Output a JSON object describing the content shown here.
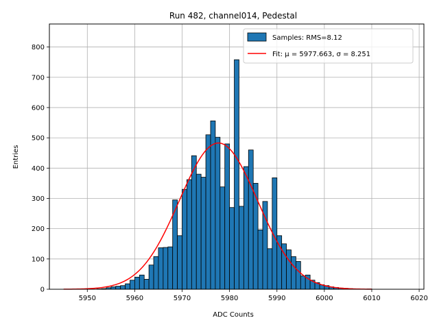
{
  "chart_data": {
    "type": "bar",
    "title": "Run 482, channel014, Pedestal",
    "xlabel": "ADC Counts",
    "ylabel": "Entries",
    "xlim": [
      5942,
      6021
    ],
    "ylim": [
      0,
      876
    ],
    "xticks": [
      5950,
      5960,
      5970,
      5980,
      5990,
      6000,
      6010,
      6020
    ],
    "yticks": [
      0,
      100,
      200,
      300,
      400,
      500,
      600,
      700,
      800
    ],
    "grid": true,
    "legend_position": "upper-right",
    "bin_width": 1,
    "bin_start": 5952,
    "values": [
      1,
      2,
      5,
      8,
      10,
      12,
      18,
      30,
      40,
      47,
      33,
      80,
      108,
      137,
      138,
      140,
      295,
      177,
      330,
      362,
      441,
      380,
      370,
      510,
      556,
      502,
      338,
      480,
      270,
      758,
      274,
      405,
      460,
      350,
      196,
      290,
      134,
      368,
      177,
      150,
      130,
      108,
      92,
      44,
      47,
      30,
      22,
      15,
      12,
      8,
      6,
      4,
      3,
      2,
      1,
      1,
      0,
      1
    ],
    "series": [
      {
        "name": "Samples: RMS=8.12",
        "kind": "histogram",
        "color": "#1f77b4",
        "edgecolor": "#000000"
      },
      {
        "name": "Fit: μ = 5977.663, σ = 8.251",
        "kind": "gaussian",
        "color": "#ff0000",
        "mu": 5977.663,
        "sigma": 8.251,
        "amplitude": 483,
        "x_range": [
          5945,
          6010
        ]
      }
    ]
  }
}
